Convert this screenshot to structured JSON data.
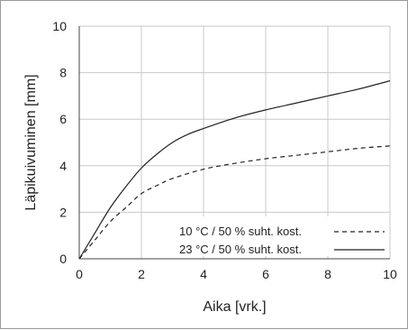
{
  "chart_data": {
    "type": "line",
    "title": "",
    "xlabel": "Aika [vrk.]",
    "ylabel": "Läpikuivuminen [mm]",
    "xlim": [
      0,
      10
    ],
    "ylim": [
      0,
      10
    ],
    "xticks": [
      0,
      2,
      4,
      6,
      8,
      10
    ],
    "yticks": [
      0,
      2,
      4,
      6,
      8,
      10
    ],
    "grid": true,
    "legend_position": "lower-right",
    "series": [
      {
        "name": "10 °C / 50 % suht. kost.",
        "dash": "dashed",
        "color": "#222222",
        "x": [
          0,
          0.5,
          1,
          1.5,
          2,
          2.5,
          3,
          4,
          5,
          6,
          7,
          8,
          9,
          10
        ],
        "y": [
          0,
          0.8,
          1.6,
          2.2,
          2.8,
          3.15,
          3.45,
          3.85,
          4.1,
          4.3,
          4.45,
          4.6,
          4.75,
          4.85
        ]
      },
      {
        "name": "23 °C / 50 % suht. kost.",
        "dash": "solid",
        "color": "#222222",
        "x": [
          0,
          0.5,
          1,
          1.5,
          2,
          2.5,
          3,
          3.5,
          4,
          5,
          6,
          7,
          8,
          9,
          10
        ],
        "y": [
          0,
          1.1,
          2.2,
          3.1,
          3.9,
          4.5,
          5.0,
          5.35,
          5.6,
          6.05,
          6.4,
          6.7,
          7.0,
          7.3,
          7.65
        ]
      }
    ]
  }
}
